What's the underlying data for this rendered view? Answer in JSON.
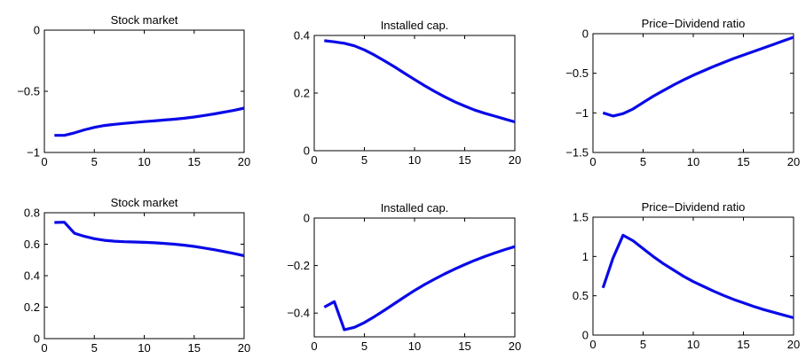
{
  "colors": {
    "line": "#0a0ae8",
    "axis": "#000000",
    "background": "#ffffff"
  },
  "chart_data": [
    {
      "type": "line",
      "title": "Stock market",
      "xlim": [
        0,
        20
      ],
      "ylim": [
        -1,
        0
      ],
      "xticks": [
        0,
        5,
        10,
        15,
        20
      ],
      "xtick_labels": [
        "0",
        "5",
        "10",
        "15",
        "20"
      ],
      "yticks": [
        -1,
        -0.5,
        0
      ],
      "ytick_labels": [
        "−1",
        "−0.5",
        "0"
      ],
      "x": [
        1,
        2,
        3,
        4,
        5,
        6,
        7,
        8,
        9,
        10,
        11,
        12,
        13,
        14,
        15,
        16,
        17,
        18,
        19,
        20
      ],
      "y": [
        -0.86,
        -0.86,
        -0.84,
        -0.815,
        -0.795,
        -0.78,
        -0.77,
        -0.762,
        -0.755,
        -0.748,
        -0.742,
        -0.735,
        -0.728,
        -0.72,
        -0.71,
        -0.698,
        -0.685,
        -0.67,
        -0.655,
        -0.638
      ]
    },
    {
      "type": "line",
      "title": "Installed cap.",
      "xlim": [
        0,
        20
      ],
      "ylim": [
        0,
        0.4
      ],
      "xticks": [
        0,
        5,
        10,
        15,
        20
      ],
      "xtick_labels": [
        "0",
        "5",
        "10",
        "15",
        "20"
      ],
      "yticks": [
        0,
        0.2,
        0.4
      ],
      "ytick_labels": [
        "0",
        "0.2",
        "0.4"
      ],
      "x": [
        1,
        2,
        3,
        4,
        5,
        6,
        7,
        8,
        9,
        10,
        11,
        12,
        13,
        14,
        15,
        16,
        17,
        18,
        19,
        20
      ],
      "y": [
        0.382,
        0.378,
        0.373,
        0.364,
        0.35,
        0.332,
        0.312,
        0.291,
        0.269,
        0.247,
        0.226,
        0.206,
        0.187,
        0.17,
        0.155,
        0.141,
        0.13,
        0.12,
        0.11,
        0.1
      ]
    },
    {
      "type": "line",
      "title": "Price−Dividend ratio",
      "xlim": [
        0,
        20
      ],
      "ylim": [
        -1.5,
        0
      ],
      "xticks": [
        0,
        5,
        10,
        15,
        20
      ],
      "xtick_labels": [
        "0",
        "5",
        "10",
        "15",
        "20"
      ],
      "yticks": [
        -1.5,
        -1,
        -0.5,
        0
      ],
      "ytick_labels": [
        "−1.5",
        "−1",
        "−0.5",
        "0"
      ],
      "x": [
        1,
        2,
        3,
        4,
        5,
        6,
        7,
        8,
        9,
        10,
        11,
        12,
        13,
        14,
        15,
        16,
        17,
        18,
        19,
        20
      ],
      "y": [
        -1.0,
        -1.04,
        -1.01,
        -0.95,
        -0.87,
        -0.79,
        -0.72,
        -0.65,
        -0.585,
        -0.525,
        -0.47,
        -0.415,
        -0.365,
        -0.315,
        -0.27,
        -0.225,
        -0.18,
        -0.135,
        -0.09,
        -0.045
      ]
    },
    {
      "type": "line",
      "title": "Stock market",
      "xlim": [
        0,
        20
      ],
      "ylim": [
        0,
        0.8
      ],
      "xticks": [
        0,
        5,
        10,
        15,
        20
      ],
      "xtick_labels": [
        "0",
        "5",
        "10",
        "15",
        "20"
      ],
      "yticks": [
        0,
        0.2,
        0.4,
        0.6,
        0.8
      ],
      "ytick_labels": [
        "0",
        "0.2",
        "0.4",
        "0.6",
        "0.8"
      ],
      "x": [
        1,
        2,
        3,
        4,
        5,
        6,
        7,
        8,
        9,
        10,
        11,
        12,
        13,
        14,
        15,
        16,
        17,
        18,
        19,
        20
      ],
      "y": [
        0.738,
        0.74,
        0.67,
        0.65,
        0.635,
        0.625,
        0.619,
        0.616,
        0.614,
        0.612,
        0.609,
        0.605,
        0.6,
        0.594,
        0.586,
        0.576,
        0.565,
        0.553,
        0.54,
        0.527
      ]
    },
    {
      "type": "line",
      "title": "Installed cap.",
      "xlim": [
        0,
        20
      ],
      "ylim": [
        -0.5,
        0
      ],
      "xticks": [
        0,
        5,
        10,
        15,
        20
      ],
      "xtick_labels": [
        "0",
        "5",
        "10",
        "15",
        "20"
      ],
      "yticks": [
        -0.4,
        -0.2,
        0
      ],
      "ytick_labels": [
        "−0.4",
        "−0.2",
        "0"
      ],
      "x": [
        1,
        2,
        3,
        4,
        5,
        6,
        7,
        8,
        9,
        10,
        11,
        12,
        13,
        14,
        15,
        16,
        17,
        18,
        19,
        20
      ],
      "y": [
        -0.375,
        -0.352,
        -0.47,
        -0.46,
        -0.44,
        -0.415,
        -0.388,
        -0.36,
        -0.332,
        -0.305,
        -0.28,
        -0.257,
        -0.235,
        -0.215,
        -0.196,
        -0.178,
        -0.162,
        -0.147,
        -0.133,
        -0.12
      ]
    },
    {
      "type": "line",
      "title": "Price−Dividend ratio",
      "xlim": [
        0,
        20
      ],
      "ylim": [
        0,
        1.5
      ],
      "xticks": [
        0,
        5,
        10,
        15,
        20
      ],
      "xtick_labels": [
        "0",
        "5",
        "10",
        "15",
        "20"
      ],
      "yticks": [
        0,
        0.5,
        1,
        1.5
      ],
      "ytick_labels": [
        "0",
        "0.5",
        "1",
        "1.5"
      ],
      "x": [
        1,
        2,
        3,
        4,
        5,
        6,
        7,
        8,
        9,
        10,
        11,
        12,
        13,
        14,
        15,
        16,
        17,
        18,
        19,
        20
      ],
      "y": [
        0.6,
        0.98,
        1.27,
        1.2,
        1.1,
        1.0,
        0.91,
        0.83,
        0.75,
        0.68,
        0.62,
        0.56,
        0.505,
        0.455,
        0.41,
        0.365,
        0.325,
        0.29,
        0.255,
        0.22
      ]
    }
  ]
}
